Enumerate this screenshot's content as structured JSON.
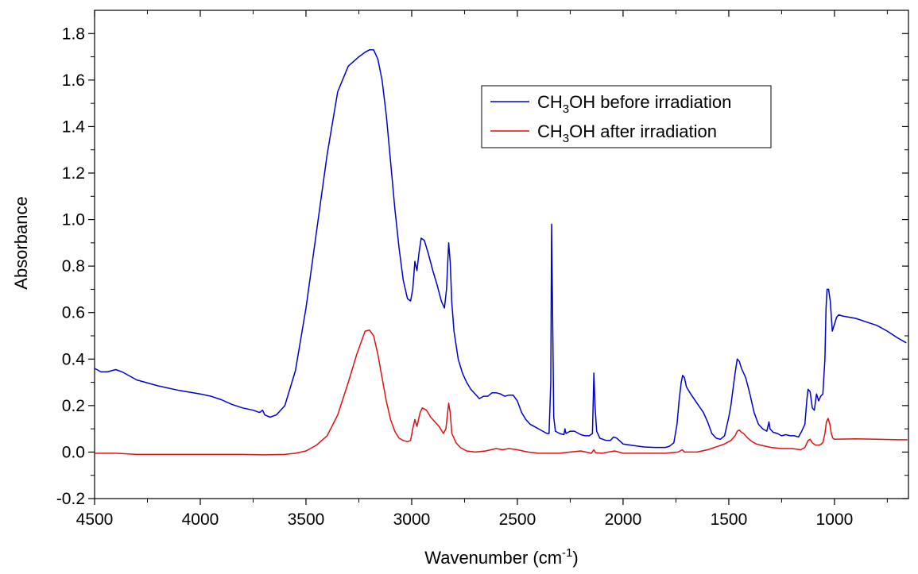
{
  "chart_data": {
    "type": "line",
    "xlabel": "Wavenumber (cm-1)",
    "xlabel_parts": {
      "base": "Wavenumber (cm",
      "sup": "-1",
      "tail": ")"
    },
    "ylabel": "Absorbance",
    "xlim": [
      4500,
      650
    ],
    "ylim": [
      -0.2,
      1.9
    ],
    "x_reversed": true,
    "grid": false,
    "legend_position": "top-right",
    "xticks": [
      4500,
      4000,
      3500,
      3000,
      2500,
      2000,
      1500,
      1000
    ],
    "xtick_labels": [
      "4500",
      "4000",
      "3500",
      "3000",
      "2500",
      "2000",
      "1500",
      "1000"
    ],
    "yticks": [
      -0.2,
      0.0,
      0.2,
      0.4,
      0.6,
      0.8,
      1.0,
      1.2,
      1.4,
      1.6,
      1.8
    ],
    "ytick_labels": [
      "-0.2",
      "0.0",
      "0.2",
      "0.4",
      "0.6",
      "0.8",
      "1.0",
      "1.2",
      "1.4",
      "1.6",
      "1.8"
    ],
    "series": [
      {
        "name": "CH3OH before irradiation",
        "name_parts": {
          "base": "CH",
          "sub": "3",
          "tail": "OH before irradiation"
        },
        "color": "#0000cc",
        "points": [
          [
            4500,
            0.36
          ],
          [
            4470,
            0.345
          ],
          [
            4440,
            0.345
          ],
          [
            4400,
            0.355
          ],
          [
            4370,
            0.345
          ],
          [
            4300,
            0.31
          ],
          [
            4200,
            0.285
          ],
          [
            4100,
            0.265
          ],
          [
            4000,
            0.25
          ],
          [
            3950,
            0.24
          ],
          [
            3900,
            0.225
          ],
          [
            3850,
            0.205
          ],
          [
            3800,
            0.19
          ],
          [
            3750,
            0.18
          ],
          [
            3720,
            0.17
          ],
          [
            3705,
            0.18
          ],
          [
            3695,
            0.16
          ],
          [
            3670,
            0.15
          ],
          [
            3640,
            0.16
          ],
          [
            3600,
            0.2
          ],
          [
            3550,
            0.35
          ],
          [
            3500,
            0.62
          ],
          [
            3450,
            0.95
          ],
          [
            3400,
            1.28
          ],
          [
            3350,
            1.55
          ],
          [
            3300,
            1.66
          ],
          [
            3250,
            1.7
          ],
          [
            3220,
            1.72
          ],
          [
            3200,
            1.73
          ],
          [
            3180,
            1.73
          ],
          [
            3160,
            1.69
          ],
          [
            3140,
            1.6
          ],
          [
            3120,
            1.45
          ],
          [
            3100,
            1.25
          ],
          [
            3080,
            1.05
          ],
          [
            3060,
            0.88
          ],
          [
            3040,
            0.74
          ],
          [
            3020,
            0.66
          ],
          [
            3005,
            0.65
          ],
          [
            2995,
            0.7
          ],
          [
            2985,
            0.82
          ],
          [
            2975,
            0.78
          ],
          [
            2965,
            0.86
          ],
          [
            2955,
            0.92
          ],
          [
            2940,
            0.91
          ],
          [
            2920,
            0.85
          ],
          [
            2900,
            0.78
          ],
          [
            2880,
            0.72
          ],
          [
            2860,
            0.65
          ],
          [
            2845,
            0.62
          ],
          [
            2835,
            0.7
          ],
          [
            2825,
            0.9
          ],
          [
            2818,
            0.82
          ],
          [
            2810,
            0.64
          ],
          [
            2800,
            0.52
          ],
          [
            2780,
            0.4
          ],
          [
            2760,
            0.34
          ],
          [
            2740,
            0.3
          ],
          [
            2720,
            0.27
          ],
          [
            2700,
            0.25
          ],
          [
            2680,
            0.23
          ],
          [
            2660,
            0.24
          ],
          [
            2640,
            0.24
          ],
          [
            2620,
            0.255
          ],
          [
            2600,
            0.255
          ],
          [
            2580,
            0.25
          ],
          [
            2560,
            0.24
          ],
          [
            2540,
            0.245
          ],
          [
            2520,
            0.245
          ],
          [
            2500,
            0.22
          ],
          [
            2480,
            0.17
          ],
          [
            2460,
            0.14
          ],
          [
            2440,
            0.12
          ],
          [
            2420,
            0.11
          ],
          [
            2400,
            0.1
          ],
          [
            2380,
            0.09
          ],
          [
            2360,
            0.08
          ],
          [
            2350,
            0.08
          ],
          [
            2342,
            0.3
          ],
          [
            2338,
            0.98
          ],
          [
            2333,
            0.55
          ],
          [
            2328,
            0.15
          ],
          [
            2320,
            0.09
          ],
          [
            2300,
            0.08
          ],
          [
            2280,
            0.075
          ],
          [
            2275,
            0.1
          ],
          [
            2270,
            0.08
          ],
          [
            2250,
            0.09
          ],
          [
            2230,
            0.09
          ],
          [
            2200,
            0.075
          ],
          [
            2180,
            0.07
          ],
          [
            2160,
            0.07
          ],
          [
            2145,
            0.08
          ],
          [
            2138,
            0.34
          ],
          [
            2133,
            0.2
          ],
          [
            2125,
            0.09
          ],
          [
            2110,
            0.06
          ],
          [
            2080,
            0.05
          ],
          [
            2060,
            0.05
          ],
          [
            2045,
            0.065
          ],
          [
            2030,
            0.06
          ],
          [
            2000,
            0.035
          ],
          [
            1950,
            0.028
          ],
          [
            1900,
            0.022
          ],
          [
            1850,
            0.02
          ],
          [
            1800,
            0.02
          ],
          [
            1780,
            0.025
          ],
          [
            1760,
            0.04
          ],
          [
            1745,
            0.12
          ],
          [
            1735,
            0.22
          ],
          [
            1725,
            0.3
          ],
          [
            1718,
            0.33
          ],
          [
            1710,
            0.32
          ],
          [
            1700,
            0.28
          ],
          [
            1680,
            0.25
          ],
          [
            1650,
            0.21
          ],
          [
            1620,
            0.17
          ],
          [
            1600,
            0.13
          ],
          [
            1580,
            0.08
          ],
          [
            1560,
            0.06
          ],
          [
            1540,
            0.055
          ],
          [
            1520,
            0.07
          ],
          [
            1500,
            0.15
          ],
          [
            1490,
            0.2
          ],
          [
            1480,
            0.27
          ],
          [
            1470,
            0.34
          ],
          [
            1460,
            0.4
          ],
          [
            1450,
            0.39
          ],
          [
            1440,
            0.36
          ],
          [
            1420,
            0.32
          ],
          [
            1400,
            0.25
          ],
          [
            1380,
            0.17
          ],
          [
            1360,
            0.12
          ],
          [
            1340,
            0.1
          ],
          [
            1320,
            0.09
          ],
          [
            1310,
            0.13
          ],
          [
            1305,
            0.1
          ],
          [
            1290,
            0.085
          ],
          [
            1270,
            0.08
          ],
          [
            1250,
            0.07
          ],
          [
            1230,
            0.075
          ],
          [
            1210,
            0.07
          ],
          [
            1190,
            0.07
          ],
          [
            1170,
            0.065
          ],
          [
            1155,
            0.09
          ],
          [
            1140,
            0.12
          ],
          [
            1130,
            0.23
          ],
          [
            1125,
            0.27
          ],
          [
            1115,
            0.26
          ],
          [
            1105,
            0.19
          ],
          [
            1095,
            0.18
          ],
          [
            1085,
            0.25
          ],
          [
            1075,
            0.22
          ],
          [
            1065,
            0.24
          ],
          [
            1055,
            0.25
          ],
          [
            1045,
            0.4
          ],
          [
            1040,
            0.62
          ],
          [
            1035,
            0.7
          ],
          [
            1028,
            0.7
          ],
          [
            1020,
            0.65
          ],
          [
            1010,
            0.52
          ],
          [
            1000,
            0.55
          ],
          [
            990,
            0.58
          ],
          [
            980,
            0.59
          ],
          [
            960,
            0.585
          ],
          [
            900,
            0.575
          ],
          [
            850,
            0.56
          ],
          [
            800,
            0.545
          ],
          [
            750,
            0.52
          ],
          [
            700,
            0.49
          ],
          [
            660,
            0.47
          ]
        ]
      },
      {
        "name": "CH3OH after irradiation",
        "name_parts": {
          "base": "CH",
          "sub": "3",
          "tail": "OH after irradiation"
        },
        "color": "#dd1111",
        "points": [
          [
            4500,
            -0.005
          ],
          [
            4400,
            -0.005
          ],
          [
            4300,
            -0.01
          ],
          [
            4200,
            -0.01
          ],
          [
            4100,
            -0.01
          ],
          [
            4000,
            -0.01
          ],
          [
            3900,
            -0.01
          ],
          [
            3800,
            -0.01
          ],
          [
            3700,
            -0.012
          ],
          [
            3600,
            -0.01
          ],
          [
            3550,
            -0.005
          ],
          [
            3500,
            0.005
          ],
          [
            3450,
            0.03
          ],
          [
            3400,
            0.07
          ],
          [
            3350,
            0.16
          ],
          [
            3300,
            0.3
          ],
          [
            3260,
            0.42
          ],
          [
            3240,
            0.47
          ],
          [
            3220,
            0.52
          ],
          [
            3200,
            0.525
          ],
          [
            3180,
            0.5
          ],
          [
            3160,
            0.42
          ],
          [
            3140,
            0.32
          ],
          [
            3120,
            0.22
          ],
          [
            3100,
            0.14
          ],
          [
            3080,
            0.09
          ],
          [
            3060,
            0.06
          ],
          [
            3040,
            0.05
          ],
          [
            3020,
            0.045
          ],
          [
            3005,
            0.05
          ],
          [
            2995,
            0.1
          ],
          [
            2985,
            0.14
          ],
          [
            2975,
            0.11
          ],
          [
            2960,
            0.17
          ],
          [
            2950,
            0.19
          ],
          [
            2930,
            0.18
          ],
          [
            2910,
            0.15
          ],
          [
            2890,
            0.13
          ],
          [
            2870,
            0.11
          ],
          [
            2850,
            0.08
          ],
          [
            2838,
            0.1
          ],
          [
            2825,
            0.21
          ],
          [
            2818,
            0.17
          ],
          [
            2810,
            0.08
          ],
          [
            2790,
            0.04
          ],
          [
            2770,
            0.02
          ],
          [
            2740,
            0.005
          ],
          [
            2700,
            0.0
          ],
          [
            2650,
            0.005
          ],
          [
            2600,
            0.015
          ],
          [
            2570,
            0.01
          ],
          [
            2540,
            0.015
          ],
          [
            2500,
            0.01
          ],
          [
            2450,
            0.0
          ],
          [
            2400,
            -0.005
          ],
          [
            2300,
            -0.005
          ],
          [
            2250,
            0.0
          ],
          [
            2200,
            0.005
          ],
          [
            2150,
            -0.005
          ],
          [
            2138,
            0.01
          ],
          [
            2130,
            -0.003
          ],
          [
            2100,
            -0.005
          ],
          [
            2040,
            0.005
          ],
          [
            2000,
            -0.005
          ],
          [
            1900,
            -0.005
          ],
          [
            1800,
            -0.005
          ],
          [
            1740,
            0.0
          ],
          [
            1720,
            0.01
          ],
          [
            1710,
            0.0
          ],
          [
            1700,
            0.0
          ],
          [
            1650,
            0.0
          ],
          [
            1600,
            0.01
          ],
          [
            1550,
            0.025
          ],
          [
            1520,
            0.035
          ],
          [
            1490,
            0.05
          ],
          [
            1470,
            0.07
          ],
          [
            1460,
            0.09
          ],
          [
            1450,
            0.095
          ],
          [
            1440,
            0.085
          ],
          [
            1430,
            0.08
          ],
          [
            1410,
            0.06
          ],
          [
            1390,
            0.045
          ],
          [
            1370,
            0.035
          ],
          [
            1350,
            0.03
          ],
          [
            1300,
            0.02
          ],
          [
            1250,
            0.015
          ],
          [
            1200,
            0.015
          ],
          [
            1160,
            0.01
          ],
          [
            1140,
            0.02
          ],
          [
            1125,
            0.05
          ],
          [
            1115,
            0.055
          ],
          [
            1105,
            0.04
          ],
          [
            1090,
            0.03
          ],
          [
            1070,
            0.03
          ],
          [
            1055,
            0.04
          ],
          [
            1045,
            0.08
          ],
          [
            1038,
            0.13
          ],
          [
            1030,
            0.145
          ],
          [
            1022,
            0.12
          ],
          [
            1015,
            0.08
          ],
          [
            1008,
            0.06
          ],
          [
            1000,
            0.055
          ],
          [
            900,
            0.057
          ],
          [
            800,
            0.055
          ],
          [
            700,
            0.053
          ],
          [
            655,
            0.053
          ]
        ]
      }
    ]
  }
}
